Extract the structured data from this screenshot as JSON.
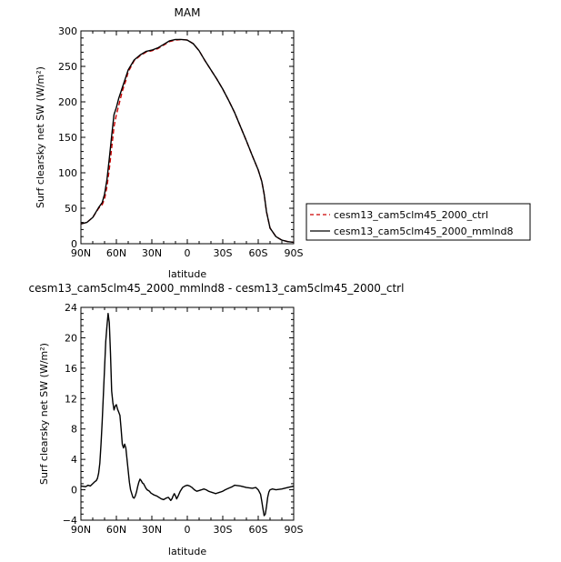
{
  "chart_data": [
    {
      "type": "line",
      "title": "MAM",
      "xlabel": "latitude",
      "ylabel": "Surf clearsky net SW (W/m²)",
      "xlim": [
        90,
        -90
      ],
      "ylim": [
        0,
        300
      ],
      "x_ticks": [
        90,
        60,
        30,
        0,
        -30,
        -60,
        -90
      ],
      "x_tick_labels": [
        "90N",
        "60N",
        "30N",
        "0",
        "30S",
        "60S",
        "90S"
      ],
      "y_ticks": [
        0,
        50,
        100,
        150,
        200,
        250,
        300
      ],
      "y_tick_labels": [
        "0",
        "50",
        "100",
        "150",
        "200",
        "250",
        "300"
      ],
      "legend": "right",
      "series": [
        {
          "name": "cesm13_cam5clm45_2000_ctrl",
          "color": "#cc0000",
          "dash": "dashed",
          "x": [
            90,
            85,
            80,
            75,
            72,
            70,
            68,
            66,
            64,
            62,
            60,
            58,
            55,
            52,
            50,
            45,
            40,
            35,
            30,
            25,
            20,
            15,
            10,
            5,
            0,
            -5,
            -10,
            -15,
            -20,
            -25,
            -30,
            -35,
            -40,
            -45,
            -50,
            -55,
            -60,
            -63,
            -65,
            -67,
            -70,
            -75,
            -80,
            -85,
            -90
          ],
          "y": [
            28,
            30,
            37,
            50,
            55,
            63,
            80,
            105,
            135,
            165,
            182,
            195,
            215,
            230,
            242,
            258,
            265,
            270,
            272,
            275,
            280,
            285,
            287,
            288,
            287,
            282,
            272,
            258,
            245,
            232,
            218,
            202,
            185,
            165,
            145,
            124,
            104,
            88,
            70,
            45,
            22,
            10,
            5,
            3,
            2
          ]
        },
        {
          "name": "cesm13_cam5clm45_2000_mmlnd8",
          "color": "#000000",
          "dash": "solid",
          "x": [
            90,
            85,
            80,
            75,
            72,
            70,
            68,
            66,
            64,
            62,
            60,
            58,
            55,
            52,
            50,
            45,
            40,
            35,
            30,
            25,
            20,
            15,
            10,
            5,
            0,
            -5,
            -10,
            -15,
            -20,
            -25,
            -30,
            -35,
            -40,
            -45,
            -50,
            -55,
            -60,
            -63,
            -65,
            -67,
            -70,
            -75,
            -80,
            -85,
            -90
          ],
          "y": [
            28,
            30,
            37,
            51,
            58,
            70,
            90,
            120,
            152,
            182,
            192,
            205,
            220,
            235,
            245,
            259,
            266,
            271,
            273,
            276,
            281,
            286,
            288,
            288,
            287,
            282,
            272,
            258,
            245,
            232,
            218,
            202,
            185,
            165,
            145,
            124,
            104,
            88,
            70,
            45,
            22,
            10,
            5,
            3,
            2
          ]
        }
      ]
    },
    {
      "type": "line",
      "title": "cesm13_cam5clm45_2000_mmlnd8 - cesm13_cam5clm45_2000_ctrl",
      "xlabel": "latitude",
      "ylabel": "Surf clearsky net SW (W/m²)",
      "xlim": [
        90,
        -90
      ],
      "ylim": [
        -4,
        24
      ],
      "x_ticks": [
        90,
        60,
        30,
        0,
        -30,
        -60,
        -90
      ],
      "x_tick_labels": [
        "90N",
        "60N",
        "30N",
        "0",
        "30S",
        "60S",
        "90S"
      ],
      "y_ticks": [
        -4,
        0,
        4,
        8,
        12,
        16,
        20,
        24
      ],
      "y_tick_labels": [
        "−4",
        "0",
        "4",
        "8",
        "12",
        "16",
        "20",
        "24"
      ],
      "series": [
        {
          "color": "#000000",
          "x": [
            90,
            86,
            84,
            82,
            80,
            78,
            77,
            76,
            75,
            74,
            73,
            72,
            71,
            70,
            69,
            68,
            67,
            66,
            65,
            64,
            63,
            62,
            61,
            60,
            59,
            58,
            57,
            56,
            55,
            54,
            53,
            52,
            51,
            50,
            49,
            48,
            47,
            46,
            45,
            44,
            43,
            42,
            41,
            40,
            39,
            38,
            37,
            36,
            35,
            34,
            33,
            32,
            31,
            30,
            29,
            28,
            26,
            24,
            22,
            20,
            18,
            16,
            15,
            14,
            13,
            12,
            11,
            10,
            9,
            8,
            6,
            4,
            2,
            0,
            -2,
            -4,
            -6,
            -8,
            -10,
            -12,
            -14,
            -16,
            -18,
            -20,
            -22,
            -24,
            -26,
            -28,
            -30,
            -32,
            -35,
            -38,
            -40,
            -45,
            -50,
            -55,
            -58,
            -60,
            -62,
            -63,
            -64,
            -65,
            -66,
            -67,
            -68,
            -69,
            -70,
            -72,
            -75,
            -80,
            -85,
            -88,
            -90
          ],
          "y": [
            0.5,
            0.4,
            0.6,
            0.5,
            0.8,
            1.1,
            1.2,
            1.5,
            2.2,
            3.5,
            6.0,
            9.0,
            12.5,
            16.0,
            19.5,
            21.5,
            23.2,
            22.0,
            18.0,
            13.0,
            11.5,
            10.5,
            11.0,
            11.2,
            10.6,
            10.2,
            9.8,
            8.0,
            6.0,
            5.5,
            6.0,
            5.5,
            4.0,
            2.5,
            1.0,
            0.0,
            -0.5,
            -1.0,
            -1.1,
            -0.8,
            -0.3,
            0.4,
            1.0,
            1.4,
            1.2,
            0.9,
            0.8,
            0.5,
            0.2,
            0.0,
            -0.1,
            -0.2,
            -0.4,
            -0.5,
            -0.6,
            -0.7,
            -0.8,
            -1.0,
            -1.2,
            -1.3,
            -1.1,
            -1.0,
            -1.2,
            -1.4,
            -1.2,
            -0.8,
            -0.5,
            -0.8,
            -1.2,
            -0.9,
            -0.2,
            0.3,
            0.5,
            0.6,
            0.5,
            0.3,
            0.0,
            -0.2,
            -0.1,
            0.0,
            0.1,
            0.0,
            -0.2,
            -0.3,
            -0.4,
            -0.5,
            -0.4,
            -0.3,
            -0.2,
            0.0,
            0.2,
            0.4,
            0.6,
            0.5,
            0.3,
            0.2,
            0.3,
            0.0,
            -0.6,
            -1.5,
            -2.5,
            -3.4,
            -3.2,
            -2.2,
            -1.0,
            -0.3,
            0.0,
            0.1,
            0.0,
            0.1,
            0.3,
            0.4,
            0.5
          ]
        }
      ]
    }
  ]
}
